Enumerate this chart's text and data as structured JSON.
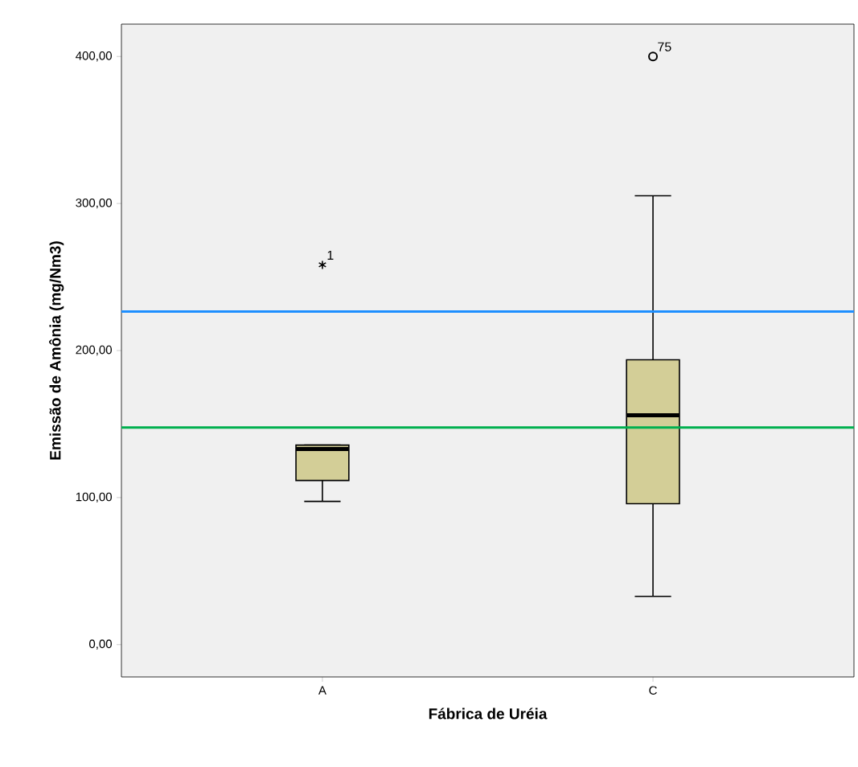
{
  "chart_data": {
    "type": "box",
    "xlabel": "Fábrica de Uréia",
    "ylabel": "Emissão de Amônia (mg/Nm3)",
    "categories": [
      "A",
      "C"
    ],
    "boxes": [
      {
        "low": 97.4,
        "q1": 111.6,
        "median": 133,
        "q3": 135.7,
        "high": 135.7,
        "outliers": [
          258.3
        ]
      },
      {
        "low": 32.8,
        "q1": 95.8,
        "median": 156,
        "q3": 193.7,
        "high": 305.3,
        "outliers": [
          400
        ]
      }
    ],
    "color": "#d3ce97",
    "ylim": [
      -22,
      422
    ],
    "yticks": [
      {
        "value": 0,
        "label": "0,00"
      },
      {
        "value": 100,
        "label": "100,00"
      },
      {
        "value": 200,
        "label": "200,00"
      },
      {
        "value": 300,
        "label": "300,00"
      },
      {
        "value": 400,
        "label": "400,00"
      }
    ],
    "ref_lines": [
      {
        "axis": "y",
        "value": 226.5,
        "color": "#1e8fff"
      },
      {
        "axis": "y",
        "value": 147.7,
        "color": "#00b04f"
      }
    ],
    "annotations": [
      "1",
      "75"
    ],
    "grid": false
  }
}
